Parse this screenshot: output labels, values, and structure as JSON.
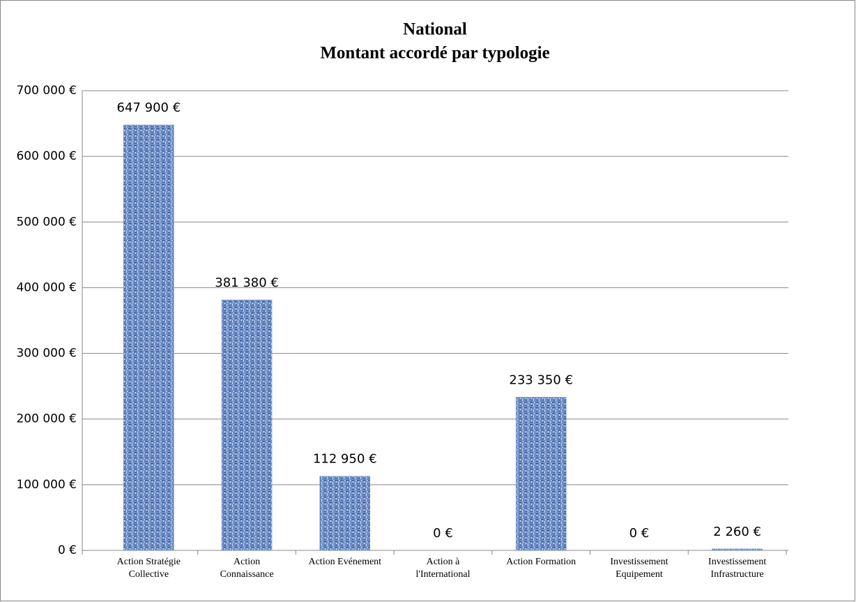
{
  "chart_data": {
    "type": "bar",
    "title": "National",
    "subtitle": "Montant accordé par typologie",
    "categories": [
      "Action Stratégie Collective",
      "Action Connaissance",
      "Action Evénement",
      "Action à l'International",
      "Action Formation",
      "Investissement Equipement",
      "Investissement Infrastructure"
    ],
    "values": [
      647900,
      381380,
      112950,
      0,
      233350,
      0,
      2260
    ],
    "value_labels": [
      "647 900 €",
      "381 380 €",
      "112 950 €",
      "0 €",
      "233 350 €",
      "0 €",
      "2 260 €"
    ],
    "color": "#6f8fc6",
    "ylim": [
      0,
      700000
    ],
    "yticks": [
      {
        "value": 0,
        "label": "0 €"
      },
      {
        "value": 100000,
        "label": "100 000 €"
      },
      {
        "value": 200000,
        "label": "200 000 €"
      },
      {
        "value": 300000,
        "label": "300 000 €"
      },
      {
        "value": 400000,
        "label": "400 000 €"
      },
      {
        "value": 500000,
        "label": "500 000 €"
      },
      {
        "value": 600000,
        "label": "600 000 €"
      },
      {
        "value": 700000,
        "label": "700 000 €"
      }
    ],
    "grid": true
  }
}
